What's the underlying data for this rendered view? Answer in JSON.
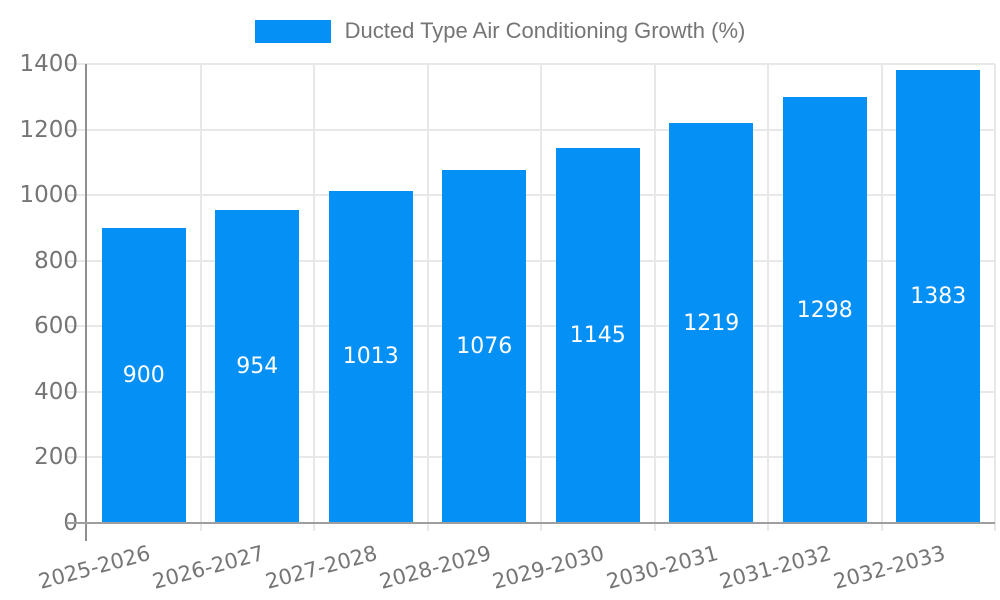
{
  "chart_data": {
    "type": "bar",
    "categories": [
      "2025-2026",
      "2026-2027",
      "2027-2028",
      "2028-2029",
      "2029-2030",
      "2030-2031",
      "2031-2032",
      "2032-2033"
    ],
    "series": [
      {
        "name": "Ducted Type Air Conditioning Growth (%)",
        "values": [
          900,
          954,
          1013,
          1076,
          1145,
          1219,
          1298,
          1383
        ]
      }
    ],
    "title": "Ducted Type Air Conditioning Growth (%)",
    "xlabel": "",
    "ylabel": "",
    "ylim": [
      0,
      1400
    ],
    "yticks": [
      "0",
      "200",
      "400",
      "600",
      "800",
      "1000",
      "1200",
      "1400"
    ],
    "legend_position": "top",
    "grid": "on",
    "value_labels": "inside-center",
    "colors": {
      "bar": "#0590f6",
      "label_text": "#757575",
      "value_text": "#ffffff",
      "gridline": "#e8e8e8",
      "axis_line": "#8f8f8f",
      "baseline": "#9e9e9e",
      "background": "#ffffff"
    }
  }
}
